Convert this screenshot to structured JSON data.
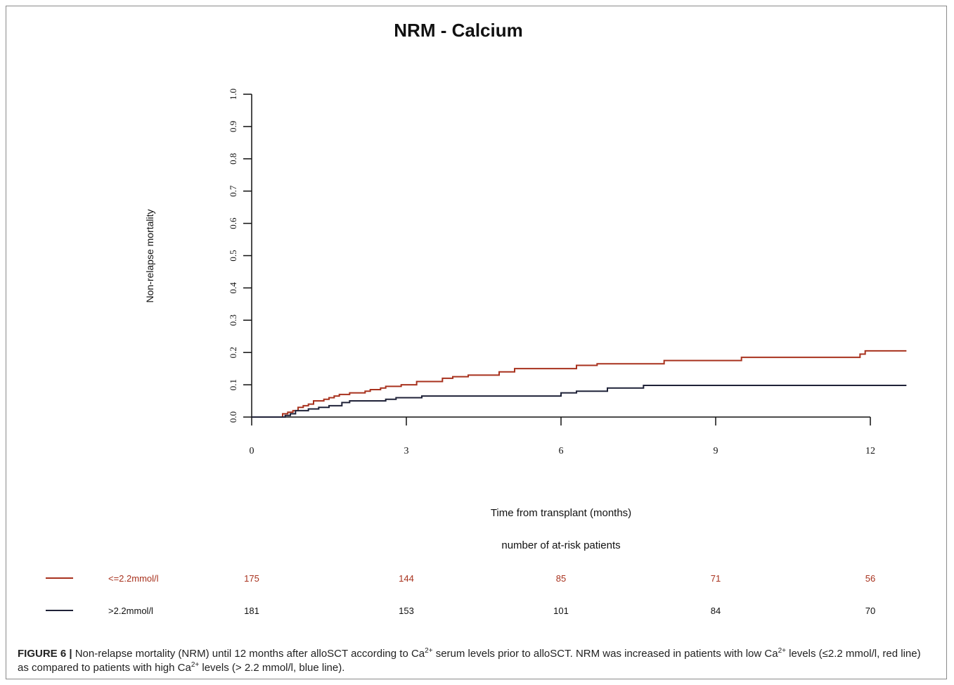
{
  "chart_data": {
    "type": "line",
    "title": "NRM - Calcium",
    "xlabel": "Time from transplant (months)",
    "ylabel": "Non-relapse mortality",
    "xlim": [
      0,
      12.7
    ],
    "ylim": [
      0,
      1.0
    ],
    "x_ticks": [
      "0",
      "3",
      "6",
      "9",
      "12"
    ],
    "y_ticks": [
      "0.0",
      "0.1",
      "0.2",
      "0.3",
      "0.4",
      "0.5",
      "0.6",
      "0.7",
      "0.8",
      "0.9",
      "1.0"
    ],
    "grid": false,
    "series": [
      {
        "name": "<=2.2mmol/l",
        "color": "#a8321e",
        "steps": [
          [
            0,
            0
          ],
          [
            0.55,
            0
          ],
          [
            0.6,
            0.01
          ],
          [
            0.7,
            0.015
          ],
          [
            0.8,
            0.02
          ],
          [
            0.9,
            0.03
          ],
          [
            1.0,
            0.035
          ],
          [
            1.1,
            0.04
          ],
          [
            1.2,
            0.05
          ],
          [
            1.4,
            0.055
          ],
          [
            1.5,
            0.06
          ],
          [
            1.6,
            0.065
          ],
          [
            1.7,
            0.07
          ],
          [
            1.9,
            0.075
          ],
          [
            2.2,
            0.08
          ],
          [
            2.3,
            0.085
          ],
          [
            2.5,
            0.09
          ],
          [
            2.6,
            0.095
          ],
          [
            2.9,
            0.1
          ],
          [
            3.2,
            0.11
          ],
          [
            3.7,
            0.12
          ],
          [
            3.9,
            0.125
          ],
          [
            4.2,
            0.13
          ],
          [
            4.8,
            0.14
          ],
          [
            5.1,
            0.15
          ],
          [
            6.3,
            0.16
          ],
          [
            6.7,
            0.165
          ],
          [
            8.0,
            0.175
          ],
          [
            9.5,
            0.185
          ],
          [
            11.8,
            0.195
          ],
          [
            11.9,
            0.205
          ],
          [
            12.7,
            0.205
          ]
        ]
      },
      {
        "name": ">2.2mmol/l",
        "color": "#1f2238",
        "steps": [
          [
            0,
            0
          ],
          [
            0.55,
            0
          ],
          [
            0.65,
            0.005
          ],
          [
            0.75,
            0.01
          ],
          [
            0.85,
            0.02
          ],
          [
            1.1,
            0.025
          ],
          [
            1.3,
            0.03
          ],
          [
            1.5,
            0.035
          ],
          [
            1.75,
            0.045
          ],
          [
            1.9,
            0.05
          ],
          [
            2.6,
            0.055
          ],
          [
            2.8,
            0.06
          ],
          [
            3.3,
            0.065
          ],
          [
            6.0,
            0.075
          ],
          [
            6.3,
            0.08
          ],
          [
            6.9,
            0.09
          ],
          [
            7.6,
            0.098
          ],
          [
            12.7,
            0.098
          ]
        ]
      }
    ],
    "risk_table": {
      "title": "number of at-risk patients",
      "times": [
        0,
        3,
        6,
        9,
        12
      ],
      "rows": [
        {
          "label": "<=2.2mmol/l",
          "color": "#a8321e",
          "values": [
            "175",
            "144",
            "85",
            "71",
            "56"
          ]
        },
        {
          "label": ">2.2mmol/l",
          "color": "#1f2238",
          "values": [
            "181",
            "153",
            "101",
            "84",
            "70"
          ]
        }
      ]
    }
  },
  "caption": {
    "label": "FIGURE 6 |",
    "p1": " Non-relapse mortality (NRM) until 12 months after alloSCT according to Ca",
    "sup1": "2+",
    "p2": " serum levels prior to alloSCT. NRM was increased in patients with low Ca",
    "sup2": "2+",
    "p3": " levels (≤2.2 mmol/l, red line) as compared to patients with high Ca",
    "sup3": "2+",
    "p4": " levels (> 2.2 mmol/l, blue line)."
  }
}
